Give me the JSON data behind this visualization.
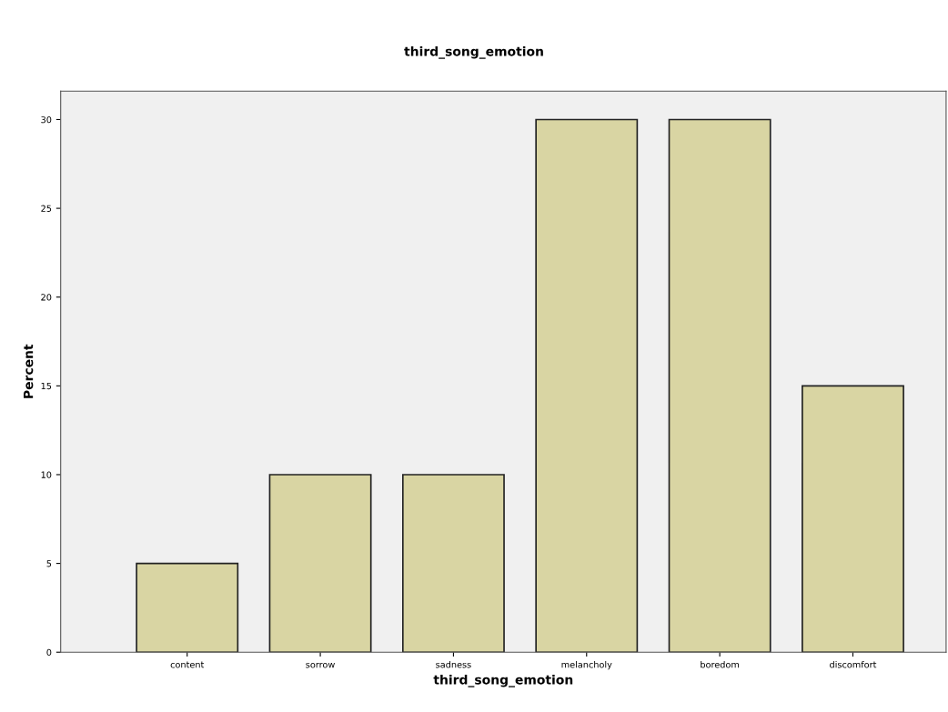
{
  "chart_data": {
    "type": "bar",
    "title": "third_song_emotion",
    "xlabel": "third_song_emotion",
    "ylabel": "Percent",
    "categories": [
      "content",
      "sorrow",
      "sadness",
      "melancholy",
      "boredom",
      "discomfort"
    ],
    "values": [
      5,
      10,
      10,
      30,
      30,
      15
    ],
    "color": "#d9d5a3",
    "ylim": [
      0,
      31.6
    ],
    "yticks": [
      0,
      5,
      10,
      15,
      20,
      25,
      30
    ],
    "grid": false
  }
}
